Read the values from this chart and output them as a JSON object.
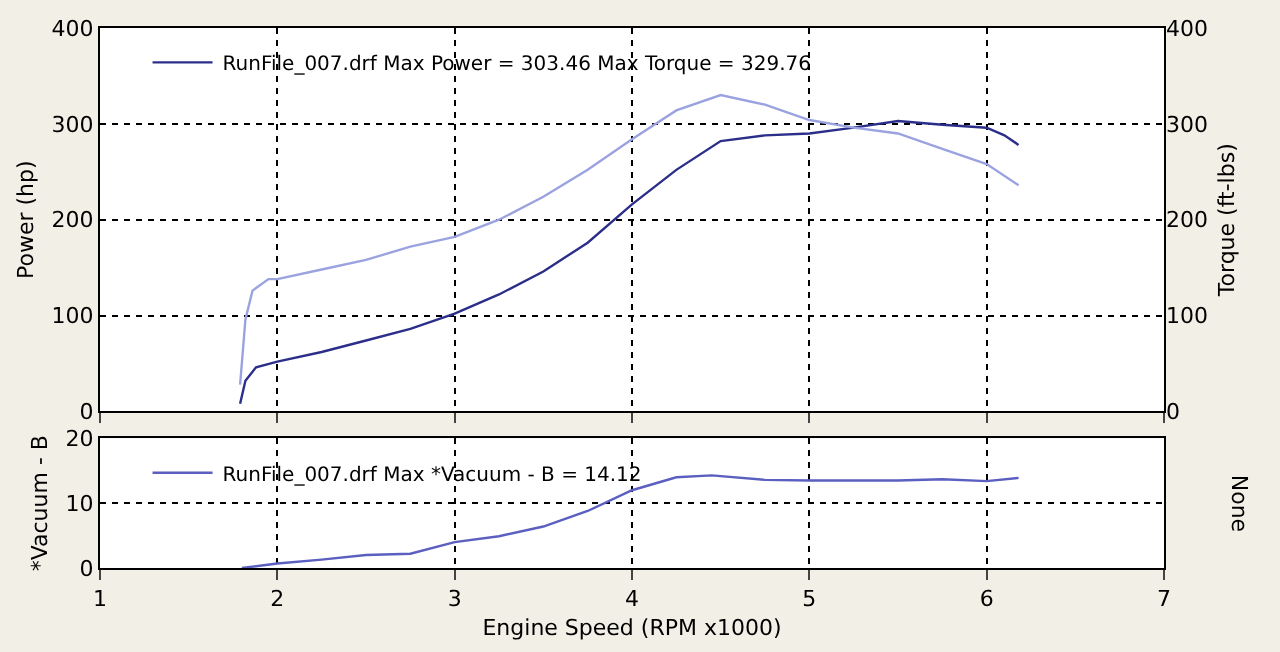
{
  "chart_data": [
    {
      "type": "line",
      "xlim": [
        1,
        7
      ],
      "xticks": [
        1,
        2,
        3,
        4,
        5,
        6,
        7
      ],
      "ylim": [
        0,
        400
      ],
      "yticks": [
        0,
        100,
        200,
        300,
        400
      ],
      "y2lim": [
        0,
        400
      ],
      "y2ticks": [
        0,
        100,
        200,
        300,
        400
      ],
      "ylabel": "Power (hp)",
      "y2label": "Torque (ft-lbs)",
      "tick_labels": "y",
      "grid": true,
      "legend": "top left",
      "marker": "none",
      "line_style": "solid",
      "series": [
        {
          "name": "RunFile_007.drf Max Power = 303.46 Max Torque = 329.76",
          "color": "#2b2f8a",
          "x": [
            1.79,
            1.82,
            1.88,
            2.0,
            2.25,
            2.5,
            2.75,
            3.0,
            3.25,
            3.5,
            3.75,
            4.0,
            4.25,
            4.5,
            4.75,
            5.0,
            5.25,
            5.5,
            5.75,
            6.0,
            6.1,
            6.18
          ],
          "values": [
            8,
            32,
            46,
            52,
            62,
            74,
            86,
            102,
            122,
            146,
            176,
            216,
            252,
            282,
            288,
            290,
            296,
            303,
            299,
            296,
            288,
            278
          ]
        },
        {
          "color": "#9aa3e0",
          "axis": "y2",
          "x": [
            1.79,
            1.82,
            1.86,
            1.95,
            2.0,
            2.25,
            2.5,
            2.75,
            3.0,
            3.25,
            3.5,
            3.75,
            4.0,
            4.25,
            4.5,
            4.75,
            5.0,
            5.25,
            5.5,
            5.75,
            6.0,
            6.18
          ],
          "values": [
            28,
            96,
            126,
            138,
            138,
            148,
            158,
            172,
            182,
            200,
            224,
            252,
            284,
            314,
            330,
            320,
            304,
            296,
            290,
            274,
            258,
            236
          ]
        }
      ]
    },
    {
      "type": "line",
      "xlim": [
        1,
        7
      ],
      "xticks": [
        1,
        2,
        3,
        4,
        5,
        6,
        7
      ],
      "ylim": [
        0,
        20
      ],
      "yticks": [
        0,
        10,
        20
      ],
      "xlabel": "Engine Speed (RPM x1000)",
      "ylabel": "*Vacuum - B",
      "y2label": "None",
      "grid": true,
      "legend": "top left",
      "marker": "none",
      "line_style": "solid",
      "series": [
        {
          "name": "RunFile_007.drf Max *Vacuum - B = 14.12",
          "color": "#5a5fc0",
          "x": [
            1.8,
            2.0,
            2.25,
            2.5,
            2.75,
            3.0,
            3.25,
            3.5,
            3.75,
            4.0,
            4.25,
            4.45,
            4.75,
            5.0,
            5.5,
            5.75,
            6.0,
            6.18
          ],
          "values": [
            0,
            0.7,
            1.3,
            2.0,
            2.2,
            4.0,
            4.9,
            6.4,
            8.8,
            12.0,
            14.0,
            14.3,
            13.6,
            13.5,
            13.5,
            13.7,
            13.4,
            13.9
          ]
        }
      ]
    }
  ]
}
